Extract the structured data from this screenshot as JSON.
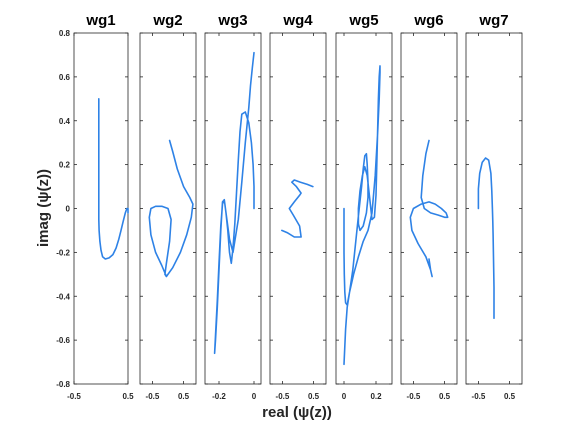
{
  "chart_data": {
    "type": "line",
    "xlabel": "real (ψ(z))",
    "ylabel": "imag (ψ(z))",
    "ylim": [
      -0.8,
      0.8
    ],
    "yticks": [
      "-0.8",
      "-0.6",
      "-0.4",
      "-0.2",
      "0",
      "0.2",
      "0.4",
      "0.6",
      "0.8"
    ],
    "line_color": "#2e82e6",
    "grid": false,
    "subplots": [
      {
        "title": "wg1",
        "xlim": [
          -0.5,
          0.5
        ],
        "xticks": [
          {
            "v": -0.5,
            "t": "-0.5"
          },
          {
            "v": 0.5,
            "t": "0.5"
          }
        ],
        "x": [
          -0.04,
          -0.04,
          -0.04,
          -0.04,
          -0.04,
          -0.035,
          -0.02,
          0.0,
          0.03,
          0.08,
          0.15,
          0.22,
          0.28,
          0.33,
          0.37,
          0.41,
          0.45,
          0.48,
          0.5,
          0.5
        ],
        "y": [
          0.5,
          0.35,
          0.2,
          0.05,
          -0.05,
          -0.1,
          -0.15,
          -0.19,
          -0.22,
          -0.23,
          -0.225,
          -0.21,
          -0.18,
          -0.14,
          -0.1,
          -0.06,
          -0.02,
          0.0,
          0.0,
          -0.02
        ]
      },
      {
        "title": "wg2",
        "xlim": [
          -0.9,
          0.9
        ],
        "xticks": [
          {
            "v": -0.5,
            "t": "-0.5"
          },
          {
            "v": 0.5,
            "t": "0.5"
          }
        ],
        "x": [
          -0.05,
          -0.2,
          -0.4,
          -0.55,
          -0.6,
          -0.55,
          -0.4,
          -0.2,
          0.0,
          0.1,
          0.05,
          -0.05,
          -0.1,
          -0.05,
          0.15,
          0.4,
          0.6,
          0.75,
          0.8,
          0.7,
          0.5,
          0.3,
          0.15,
          0.05
        ],
        "y": [
          -0.31,
          -0.26,
          -0.2,
          -0.12,
          -0.04,
          0.0,
          0.01,
          0.01,
          0.0,
          -0.05,
          -0.15,
          -0.25,
          -0.3,
          -0.31,
          -0.27,
          -0.2,
          -0.12,
          -0.04,
          0.02,
          0.05,
          0.1,
          0.18,
          0.26,
          0.31
        ]
      },
      {
        "title": "wg3",
        "xlim": [
          -0.28,
          0.04
        ],
        "xticks": [
          {
            "v": -0.2,
            "t": "-0.2"
          },
          {
            "v": 0.0,
            "t": "0"
          }
        ],
        "x": [
          0.0,
          0.0,
          -0.005,
          -0.015,
          -0.03,
          -0.05,
          -0.07,
          -0.08,
          -0.09,
          -0.1,
          -0.11,
          -0.12,
          -0.13,
          -0.14,
          -0.15,
          -0.16,
          -0.17,
          -0.18,
          -0.19,
          -0.2,
          -0.21,
          -0.22,
          -0.225,
          -0.22,
          -0.21,
          -0.2,
          -0.19,
          -0.18,
          -0.17,
          -0.16,
          -0.14,
          -0.12,
          -0.09,
          -0.07,
          -0.05,
          -0.03,
          -0.02,
          -0.01,
          0.0
        ],
        "y": [
          0.0,
          0.1,
          0.2,
          0.3,
          0.39,
          0.44,
          0.43,
          0.35,
          0.22,
          0.07,
          -0.07,
          -0.18,
          -0.25,
          -0.2,
          -0.1,
          -0.02,
          0.04,
          0.02,
          -0.08,
          -0.25,
          -0.42,
          -0.58,
          -0.66,
          -0.6,
          -0.45,
          -0.28,
          -0.1,
          0.03,
          0.04,
          -0.02,
          -0.14,
          -0.2,
          -0.05,
          0.12,
          0.3,
          0.46,
          0.56,
          0.64,
          0.71
        ]
      },
      {
        "title": "wg4",
        "xlim": [
          -0.9,
          0.9
        ],
        "xticks": [
          {
            "v": -0.5,
            "t": "-0.5"
          },
          {
            "v": 0.5,
            "t": "0.5"
          }
        ],
        "x": [
          -0.52,
          -0.35,
          -0.12,
          0.1,
          0.05,
          -0.15,
          -0.28,
          -0.12,
          0.05,
          0.1,
          -0.05,
          -0.2,
          -0.12,
          0.08,
          0.3,
          0.48
        ],
        "y": [
          -0.1,
          -0.11,
          -0.13,
          -0.13,
          -0.08,
          -0.03,
          0.0,
          0.03,
          0.06,
          0.07,
          0.1,
          0.12,
          0.13,
          0.12,
          0.11,
          0.1
        ]
      },
      {
        "title": "wg5",
        "xlim": [
          -0.05,
          0.3
        ],
        "xticks": [
          {
            "v": 0.0,
            "t": "0"
          },
          {
            "v": 0.2,
            "t": "0.2"
          }
        ],
        "x": [
          0.0,
          0.0,
          0.0,
          0.002,
          0.005,
          0.01,
          0.02,
          0.035,
          0.055,
          0.075,
          0.095,
          0.11,
          0.12,
          0.13,
          0.14,
          0.145,
          0.15,
          0.15,
          0.14,
          0.12,
          0.1,
          0.09,
          0.09,
          0.1,
          0.115,
          0.13,
          0.145,
          0.16,
          0.175,
          0.19,
          0.2,
          0.205,
          0.21,
          0.215,
          0.22,
          0.225,
          0.225,
          0.22,
          0.21,
          0.195,
          0.175,
          0.15,
          0.12,
          0.09,
          0.06,
          0.035,
          0.02,
          0.01,
          0.005,
          0.0
        ],
        "y": [
          0.0,
          -0.1,
          -0.2,
          -0.3,
          -0.38,
          -0.43,
          -0.44,
          -0.38,
          -0.28,
          -0.14,
          0.0,
          0.1,
          0.18,
          0.24,
          0.25,
          0.2,
          0.12,
          0.05,
          -0.02,
          -0.08,
          -0.1,
          -0.07,
          0.0,
          0.08,
          0.15,
          0.19,
          0.15,
          0.05,
          -0.05,
          -0.04,
          0.06,
          0.2,
          0.35,
          0.5,
          0.6,
          0.65,
          0.62,
          0.5,
          0.34,
          0.15,
          -0.02,
          -0.1,
          -0.15,
          -0.22,
          -0.3,
          -0.38,
          -0.45,
          -0.55,
          -0.63,
          -0.71
        ]
      },
      {
        "title": "wg6",
        "xlim": [
          -0.9,
          0.9
        ],
        "xticks": [
          {
            "v": -0.5,
            "t": "-0.5"
          },
          {
            "v": 0.5,
            "t": "0.5"
          }
        ],
        "x": [
          0.0,
          -0.1,
          -0.2,
          -0.25,
          -0.15,
          0.05,
          0.3,
          0.5,
          0.6,
          0.55,
          0.4,
          0.2,
          0.0,
          -0.25,
          -0.5,
          -0.6,
          -0.55,
          -0.35,
          -0.1,
          0.05,
          0.1,
          0.05,
          0.0
        ],
        "y": [
          0.31,
          0.25,
          0.15,
          0.05,
          0.0,
          -0.02,
          -0.03,
          -0.04,
          -0.04,
          -0.02,
          0.0,
          0.02,
          0.03,
          0.02,
          0.0,
          -0.04,
          -0.1,
          -0.16,
          -0.22,
          -0.28,
          -0.31,
          -0.28,
          -0.23
        ]
      },
      {
        "title": "wg7",
        "xlim": [
          -0.9,
          0.9
        ],
        "xticks": [
          {
            "v": -0.5,
            "t": "-0.5"
          },
          {
            "v": 0.5,
            "t": "0.5"
          }
        ],
        "x": [
          -0.5,
          -0.5,
          -0.46,
          -0.38,
          -0.27,
          -0.17,
          -0.1,
          -0.07,
          -0.05,
          -0.04,
          -0.03,
          -0.02,
          -0.01,
          0.0,
          0.0,
          0.0
        ],
        "y": [
          0.0,
          0.09,
          0.16,
          0.21,
          0.23,
          0.22,
          0.16,
          0.08,
          0.0,
          -0.06,
          -0.12,
          -0.2,
          -0.28,
          -0.36,
          -0.44,
          -0.5
        ]
      }
    ]
  }
}
